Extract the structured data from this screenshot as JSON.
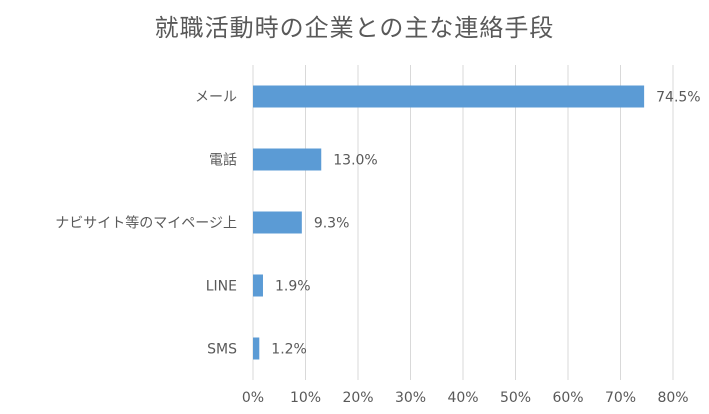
{
  "chart_data": {
    "type": "bar",
    "orientation": "horizontal",
    "title": "就職活動時の企業との主な連絡手段",
    "categories": [
      "メール",
      "電話",
      "ナビサイト等のマイページ上",
      "LINE",
      "SMS"
    ],
    "values": [
      74.5,
      13.0,
      9.3,
      1.9,
      1.2
    ],
    "data_labels": [
      "74.5%",
      "13.0%",
      "9.3%",
      "1.9%",
      "1.2%"
    ],
    "x_ticks": [
      "0%",
      "10%",
      "20%",
      "30%",
      "40%",
      "50%",
      "60%",
      "70%",
      "80%"
    ],
    "xlim": [
      0,
      80
    ],
    "xlabel": "",
    "ylabel": "",
    "grid": "vertical",
    "legend": "none",
    "colors": {
      "bar": "#5B9BD5",
      "grid": "#D9D9D9",
      "text": "#595959"
    }
  }
}
